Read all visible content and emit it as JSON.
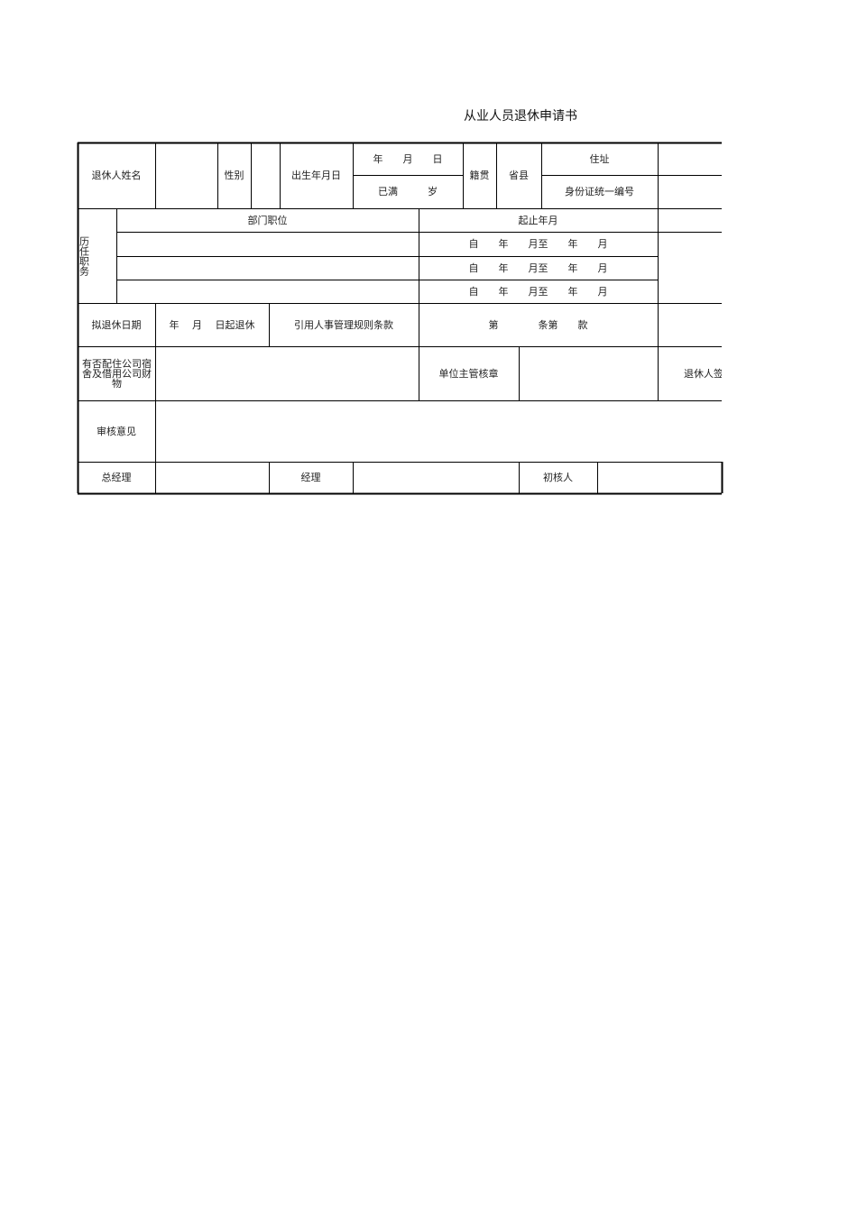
{
  "header": {
    "title": "从业人员退休申请书"
  },
  "table": {
    "cells": [
      "退休人姓名",
      "性别",
      "出生年月日",
      "年　　月　　日",
      "已满　　　岁",
      "籍贯",
      "省县",
      "住址",
      "身份证统一编号",
      "历任职务",
      "部门职位",
      "起止年月",
      "自　　年　　月至　　年　　月",
      "自　　年　　月至　　年　　月",
      "自　　年　　月至　　年　　月",
      "拟退休日期",
      "年　 月　 日起退休",
      "引用人事管理规则条款",
      "第　　　　条第　　款",
      "有否配住公司宿舍及借用公司财物",
      "单位主管核章",
      "退休人签",
      "审核意见",
      "总经理",
      "经理",
      "初核人"
    ]
  }
}
